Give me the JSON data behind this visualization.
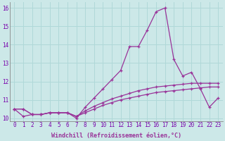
{
  "x": [
    0,
    1,
    2,
    3,
    4,
    5,
    6,
    7,
    8,
    9,
    10,
    11,
    12,
    13,
    14,
    15,
    16,
    17,
    18,
    19,
    20,
    21,
    22,
    23
  ],
  "line1": [
    10.5,
    10.5,
    10.2,
    10.2,
    10.3,
    10.3,
    10.3,
    10.1,
    10.3,
    10.5,
    10.7,
    10.85,
    11.0,
    11.1,
    11.2,
    11.3,
    11.4,
    11.45,
    11.5,
    11.55,
    11.6,
    11.65,
    11.7,
    11.7
  ],
  "line2": [
    10.5,
    10.5,
    10.2,
    10.2,
    10.3,
    10.3,
    10.3,
    10.1,
    10.4,
    10.65,
    10.85,
    11.05,
    11.2,
    11.35,
    11.5,
    11.6,
    11.7,
    11.75,
    11.8,
    11.85,
    11.9,
    11.9,
    11.9,
    11.9
  ],
  "line3": [
    10.5,
    10.1,
    10.2,
    10.2,
    10.3,
    10.3,
    10.3,
    10.0,
    10.6,
    11.1,
    11.6,
    12.1,
    12.6,
    13.9,
    13.9,
    14.8,
    15.8,
    16.0,
    13.2,
    12.3,
    12.5,
    11.6,
    10.6,
    11.1
  ],
  "xlabel": "Windchill (Refroidissement éolien,°C)",
  "xlim": [
    -0.5,
    23.5
  ],
  "ylim": [
    9.85,
    16.3
  ],
  "yticks": [
    10,
    11,
    12,
    13,
    14,
    15,
    16
  ],
  "xticks": [
    0,
    1,
    2,
    3,
    4,
    5,
    6,
    7,
    8,
    9,
    10,
    11,
    12,
    13,
    14,
    15,
    16,
    17,
    18,
    19,
    20,
    21,
    22,
    23
  ],
  "line_color": "#993399",
  "bg_color": "#cce8e8",
  "grid_color": "#b0d8d8",
  "marker": "+",
  "tick_fontsize": 5.5,
  "xlabel_fontsize": 6.0
}
